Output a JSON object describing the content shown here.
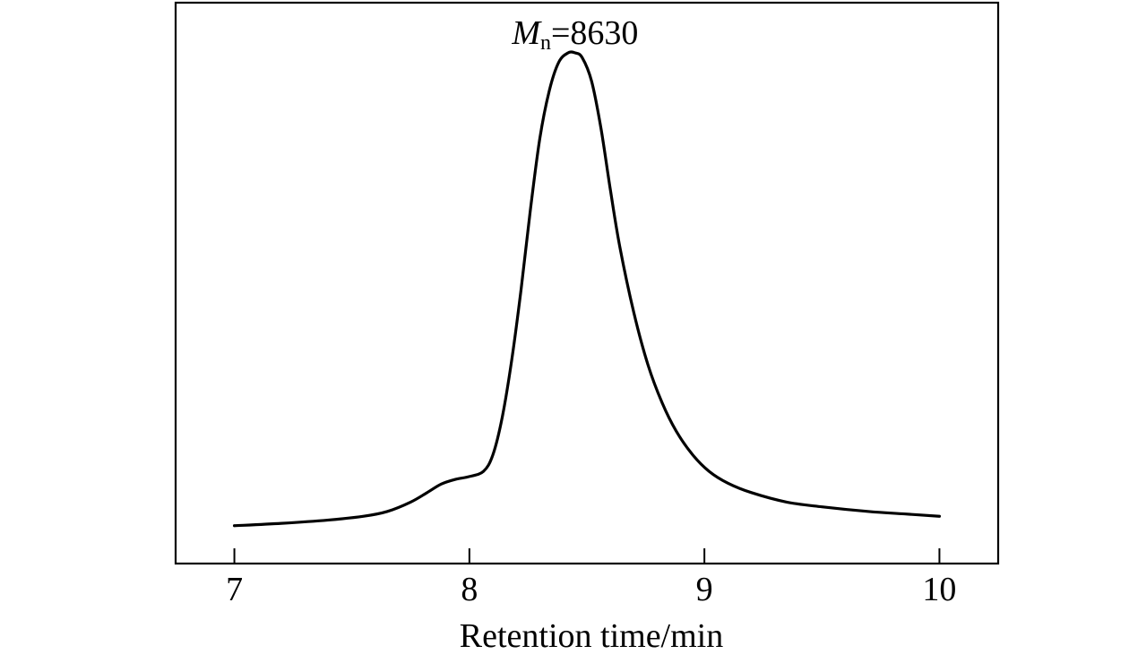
{
  "chart_data": {
    "type": "line",
    "xlabel": "Retention time/min",
    "ylabel": "",
    "xlim": [
      6.75,
      10.25
    ],
    "ylim": [
      -0.08,
      1.0
    ],
    "xticks": [
      7,
      8,
      9,
      10
    ],
    "xtick_labels": [
      "7",
      "8",
      "9",
      "10"
    ],
    "y_ticks_shown": false,
    "grid": false,
    "annotation": {
      "symbol": "M",
      "subscript": "n",
      "text": "=8630",
      "x": 8.45,
      "y": 1.0
    },
    "series": [
      {
        "x": [
          7.0,
          7.2,
          7.4,
          7.55,
          7.65,
          7.75,
          7.82,
          7.88,
          7.94,
          8.0,
          8.06,
          8.1,
          8.14,
          8.18,
          8.22,
          8.26,
          8.3,
          8.34,
          8.38,
          8.42,
          8.45,
          8.48,
          8.52,
          8.56,
          8.6,
          8.64,
          8.7,
          8.76,
          8.82,
          8.88,
          8.95,
          9.02,
          9.1,
          9.2,
          9.35,
          9.5,
          9.7,
          9.85,
          10.0
        ],
        "y": [
          0.0,
          0.005,
          0.012,
          0.02,
          0.03,
          0.05,
          0.07,
          0.088,
          0.098,
          0.104,
          0.115,
          0.15,
          0.23,
          0.35,
          0.5,
          0.67,
          0.82,
          0.92,
          0.98,
          1.0,
          1.0,
          0.99,
          0.94,
          0.84,
          0.71,
          0.59,
          0.45,
          0.34,
          0.26,
          0.2,
          0.15,
          0.115,
          0.09,
          0.07,
          0.05,
          0.04,
          0.03,
          0.025,
          0.02
        ]
      }
    ]
  }
}
